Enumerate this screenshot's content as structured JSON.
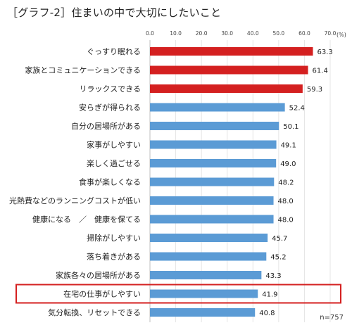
{
  "title": "［グラフ-2］住まいの中で大切にしたいこと",
  "sample_note": "n=757",
  "colors": {
    "highlight": "#d42020",
    "normal": "#5b9bd5",
    "frame": "#d42020"
  },
  "chart_data": {
    "type": "bar",
    "orientation": "horizontal",
    "title": "［グラフ-2］住まいの中で大切にしたいこと",
    "unit": "(%)",
    "xlim": [
      0,
      70
    ],
    "ticks": [
      "0.0",
      "10.0",
      "20.0",
      "30.0",
      "40.0",
      "50.0",
      "60.0",
      "70.0"
    ],
    "categories": [
      "ぐっすり眠れる",
      "家族とコミュニケーションできる",
      "リラックスできる",
      "安らぎが得られる",
      "自分の居場所がある",
      "家事がしやすい",
      "楽しく過ごせる",
      "食事が楽しくなる",
      "光熱費などのランニングコストが低い",
      "健康になる　／　健康を保てる",
      "掃除がしやすい",
      "落ち着きがある",
      "家族各々の居場所がある",
      "在宅の仕事がしやすい",
      "気分転換、リセットできる"
    ],
    "values": [
      63.3,
      61.4,
      59.3,
      52.4,
      50.1,
      49.1,
      49.0,
      48.2,
      48.0,
      48.0,
      45.7,
      45.2,
      43.3,
      41.9,
      40.8
    ],
    "value_labels": [
      "63.3",
      "61.4",
      "59.3",
      "52.4",
      "50.1",
      "49.1",
      "49.0",
      "48.2",
      "48.0",
      "48.0",
      "45.7",
      "45.2",
      "43.3",
      "41.9",
      "40.8"
    ],
    "highlighted": [
      0,
      1,
      2
    ],
    "framed": 13
  }
}
